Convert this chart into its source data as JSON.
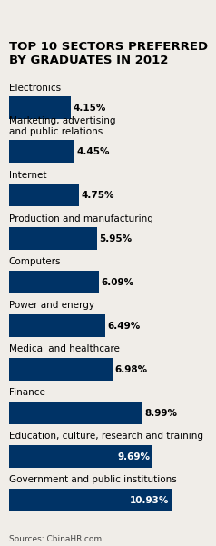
{
  "title": "TOP 10 SECTORS PREFERRED\nBY GRADUATES IN 2012",
  "categories": [
    "Electronics",
    "Marketing, advertising\nand public relations",
    "Internet",
    "Production and manufacturing",
    "Computers",
    "Power and energy",
    "Medical and healthcare",
    "Finance",
    "Education, culture, research and training",
    "Government and public institutions"
  ],
  "values": [
    4.15,
    4.45,
    4.75,
    5.95,
    6.09,
    6.49,
    6.98,
    8.99,
    9.69,
    10.93
  ],
  "labels": [
    "4.15%",
    "4.45%",
    "4.75%",
    "5.95%",
    "6.09%",
    "6.49%",
    "6.98%",
    "8.99%",
    "9.69%",
    "10.93%"
  ],
  "bar_color": "#003366",
  "label_color_inside": "#ffffff",
  "label_color_outside": "#000000",
  "inside_threshold": 9.0,
  "background_color": "#f0ede8",
  "title_fontsize": 9.5,
  "label_fontsize": 7.5,
  "category_fontsize": 7.5,
  "source_text": "Sources: ChinaHR.com",
  "source_fontsize": 6.5,
  "xlim": [
    0,
    13.5
  ],
  "bar_height": 0.52
}
